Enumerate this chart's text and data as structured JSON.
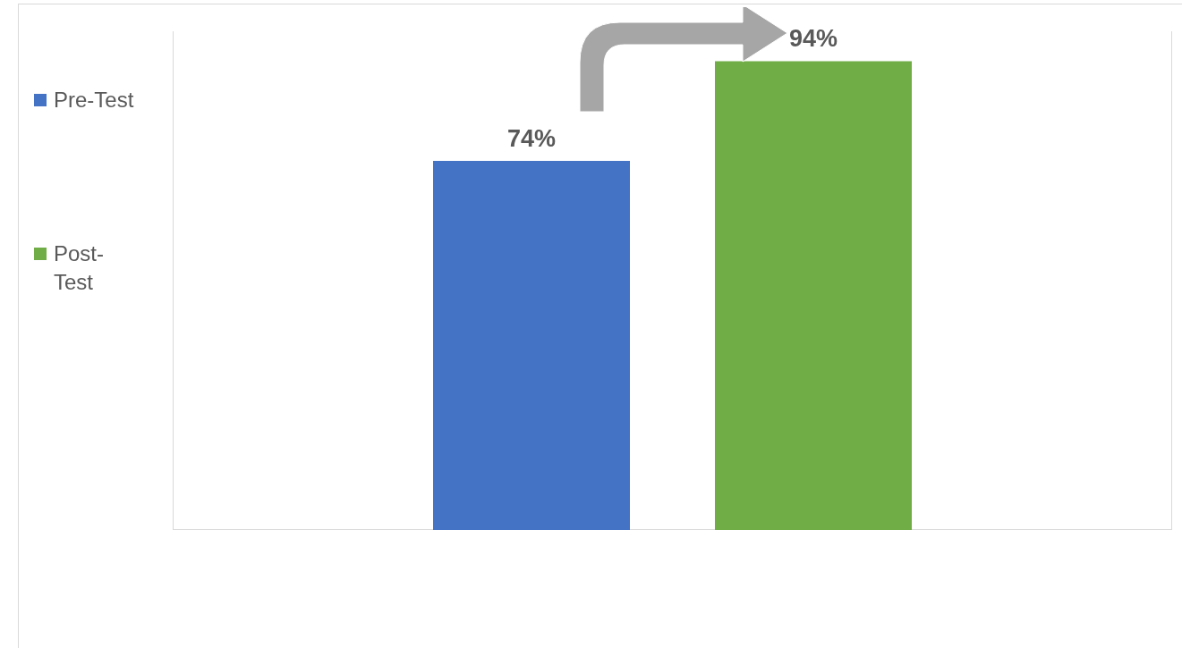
{
  "chart_data": {
    "type": "bar",
    "categories": [
      null
    ],
    "series": [
      {
        "name": "Pre-Test",
        "color": "#4472c4",
        "values": [
          74
        ],
        "value_labels": [
          "74%"
        ]
      },
      {
        "name": "Post-Test",
        "color": "#70ad47",
        "values": [
          94
        ],
        "value_labels": [
          "94%"
        ]
      }
    ],
    "legend": "left"
  }
}
